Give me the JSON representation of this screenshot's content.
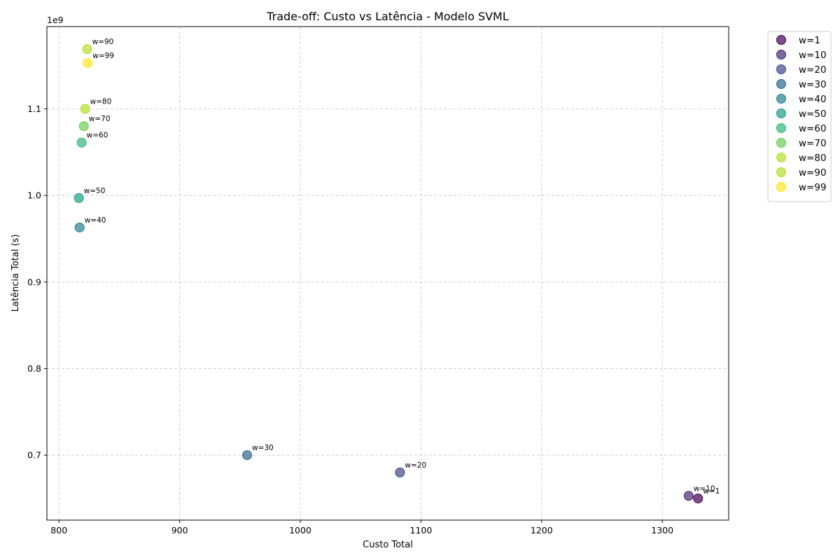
{
  "chart_data": {
    "type": "scatter",
    "title": "Trade-off: Custo vs Latência - Modelo SVML",
    "xlabel": "Custo Total",
    "ylabel": "Latência Total (s)",
    "y_offset_text": "1e9",
    "xlim": [
      790,
      1355
    ],
    "ylim": [
      0.625,
      1.195
    ],
    "xticks": [
      800,
      900,
      1000,
      1100,
      1200,
      1300
    ],
    "xtick_labels": [
      "800",
      "900",
      "1000",
      "1100",
      "1200",
      "1300"
    ],
    "yticks": [
      0.7,
      0.8,
      0.9,
      1.0,
      1.1
    ],
    "ytick_labels": [
      "0.7",
      "0.8",
      "0.9",
      "1.0",
      "1.1"
    ],
    "grid": true,
    "legend_position": "outside-top-right",
    "series": [
      {
        "name": "w=1",
        "label": "w=1",
        "x": 1329.6,
        "y": 0.65,
        "color": "#440154"
      },
      {
        "name": "w=10",
        "label": "w=10",
        "x": 1321.8,
        "y": 0.653,
        "color": "#482878"
      },
      {
        "name": "w=20",
        "label": "w=20",
        "x": 1082.6,
        "y": 0.68,
        "color": "#3e4a89"
      },
      {
        "name": "w=30",
        "label": "w=30",
        "x": 955.9,
        "y": 0.7,
        "color": "#31688e"
      },
      {
        "name": "w=40",
        "label": "w=40",
        "x": 817.1,
        "y": 0.963,
        "color": "#26828e"
      },
      {
        "name": "w=50",
        "label": "w=50",
        "x": 816.5,
        "y": 0.997,
        "color": "#1f9e89"
      },
      {
        "name": "w=60",
        "label": "w=60",
        "x": 818.8,
        "y": 1.061,
        "color": "#35b779"
      },
      {
        "name": "w=70",
        "label": "w=70",
        "x": 820.6,
        "y": 1.08,
        "color": "#6ece58"
      },
      {
        "name": "w=80",
        "label": "w=80",
        "x": 821.7,
        "y": 1.1,
        "color": "#b5de2b"
      },
      {
        "name": "w=90",
        "label": "w=90",
        "x": 823.4,
        "y": 1.169,
        "color": "#b5de2b"
      },
      {
        "name": "w=99",
        "label": "w=99",
        "x": 823.8,
        "y": 1.153,
        "color": "#fde725"
      }
    ]
  }
}
